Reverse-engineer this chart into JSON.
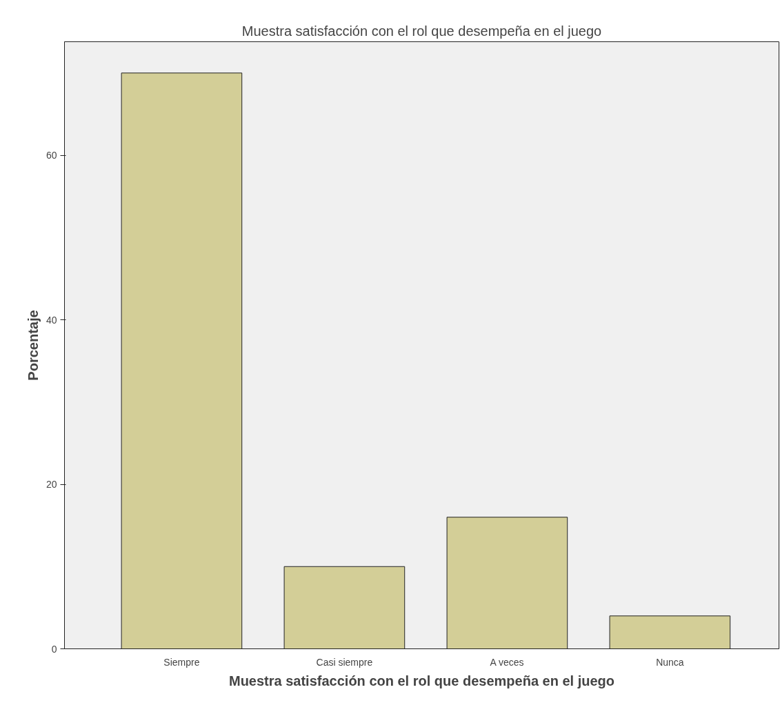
{
  "chart_data": {
    "type": "bar",
    "title": "Muestra satisfacción con el rol que desempeña en el juego",
    "xlabel": "Muestra satisfacción con el rol que desempeña en el juego",
    "ylabel": "Porcentaje",
    "categories": [
      "Siempre",
      "Casi siempre",
      "A veces",
      "Nunca"
    ],
    "values": [
      70,
      10,
      16,
      4
    ],
    "color": "#d3ce97",
    "ylim": [
      0,
      73.8
    ],
    "yticks": [
      0,
      20,
      40,
      60
    ],
    "grid": false
  }
}
